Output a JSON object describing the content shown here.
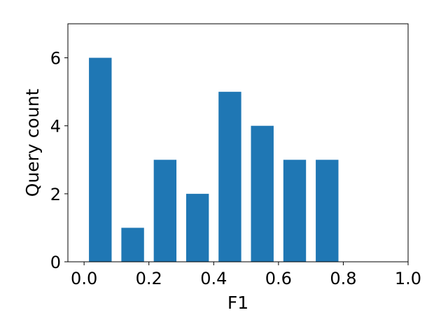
{
  "chart_data": {
    "type": "bar",
    "x": [
      0.05,
      0.15,
      0.25,
      0.35,
      0.45,
      0.55,
      0.65,
      0.75
    ],
    "values": [
      6,
      1,
      3,
      2,
      5,
      4,
      3,
      3
    ],
    "bar_width": 0.07,
    "xlabel": "F1",
    "ylabel": "Query count",
    "xlim": [
      -0.05,
      1.0
    ],
    "ylim": [
      0,
      7
    ],
    "xticks": [
      0.0,
      0.2,
      0.4,
      0.6,
      0.8,
      1.0
    ],
    "xtick_labels": [
      "0.0",
      "0.2",
      "0.4",
      "0.6",
      "0.8",
      "1.0"
    ],
    "yticks": [
      0,
      2,
      4,
      6
    ],
    "ytick_labels": [
      "0",
      "2",
      "4",
      "6"
    ],
    "grid": false,
    "bar_color": "#1f77b4"
  }
}
